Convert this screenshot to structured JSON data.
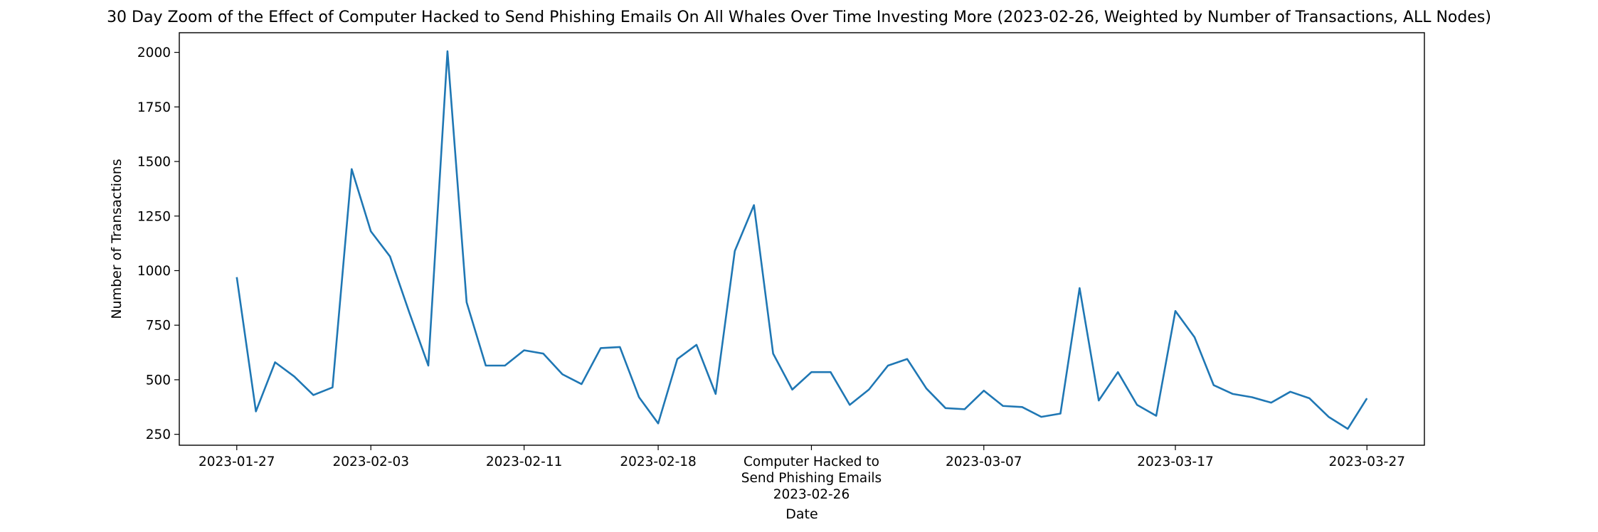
{
  "chart_data": {
    "type": "line",
    "title": "30 Day Zoom of the Effect of Computer Hacked to Send Phishing Emails On All Whales Over Time Investing More (2023-02-26, Weighted by Number of Transactions, ALL Nodes)",
    "xlabel": "Date",
    "ylabel": "Number of Transactions",
    "ylim": [
      200,
      2090
    ],
    "xlim": [
      "2023-01-24",
      "2023-03-30"
    ],
    "yticks": [
      250,
      500,
      750,
      1000,
      1250,
      1500,
      1750,
      2000
    ],
    "xticks": [
      {
        "date": "2023-01-27",
        "label": "2023-01-27"
      },
      {
        "date": "2023-02-03",
        "label": "2023-02-03"
      },
      {
        "date": "2023-02-11",
        "label": "2023-02-11"
      },
      {
        "date": "2023-02-18",
        "label": "2023-02-18"
      },
      {
        "date": "2023-02-26",
        "label": "Computer Hacked to\nSend Phishing Emails\n2023-02-26"
      },
      {
        "date": "2023-03-07",
        "label": "2023-03-07"
      },
      {
        "date": "2023-03-17",
        "label": "2023-03-17"
      },
      {
        "date": "2023-03-27",
        "label": "2023-03-27"
      }
    ],
    "grid": false,
    "color": "#1f77b4",
    "series": [
      {
        "start": "2023-01-27",
        "values": [
          970,
          355,
          580,
          515,
          430,
          465,
          1465,
          1180,
          1065,
          810,
          565,
          2005,
          855,
          565,
          565,
          635,
          620,
          525,
          480,
          645,
          650,
          420,
          300,
          595,
          660,
          435,
          1090,
          1300,
          620,
          455,
          535,
          535,
          385,
          455,
          565,
          595,
          460,
          370,
          365,
          450,
          380,
          375,
          330,
          345,
          920,
          405,
          535,
          385,
          335,
          815,
          695,
          475,
          435,
          420,
          395,
          445,
          415,
          330,
          275,
          415
        ]
      }
    ]
  }
}
